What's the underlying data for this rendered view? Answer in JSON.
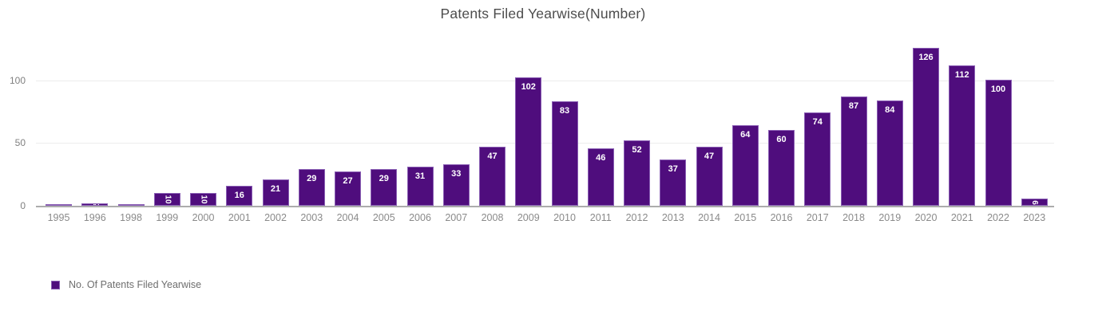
{
  "chart_data": {
    "type": "bar",
    "title": "Patents Filed Yearwise(Number)",
    "categories": [
      "1995",
      "1996",
      "1998",
      "1999",
      "2000",
      "2001",
      "2002",
      "2003",
      "2004",
      "2005",
      "2006",
      "2007",
      "2008",
      "2009",
      "2010",
      "2011",
      "2012",
      "2013",
      "2014",
      "2015",
      "2016",
      "2017",
      "2018",
      "2019",
      "2020",
      "2021",
      "2022",
      "2023"
    ],
    "values": [
      1,
      2,
      1,
      10,
      10,
      16,
      21,
      29,
      27,
      29,
      31,
      33,
      47,
      102,
      83,
      46,
      52,
      37,
      47,
      64,
      60,
      74,
      87,
      84,
      126,
      112,
      100,
      6
    ],
    "series_name": "No. Of Patents Filed Yearwise",
    "xlabel": "",
    "ylabel": "",
    "ylim": [
      0,
      130
    ],
    "yticks": [
      0,
      50,
      100
    ],
    "grid": true,
    "legend_position": "bottom-left",
    "data_label_style": "white, inside top of bar, rotated 90deg when bar is too small"
  },
  "y_axis": {
    "ticks": [
      "0",
      "50",
      "100"
    ]
  },
  "legend": {
    "label": "No. Of Patents Filed Yearwise",
    "swatch_color": "#4F0D7D"
  },
  "colors": {
    "bar": "#4F0D7D",
    "bar_border": "#8A5FB4",
    "data_label": "#FFFFFF",
    "gridline": "#ECECEC",
    "axis_line": "#ACACAC",
    "title_text": "#4D4D4D",
    "axis_text": "#8A8A8A"
  }
}
